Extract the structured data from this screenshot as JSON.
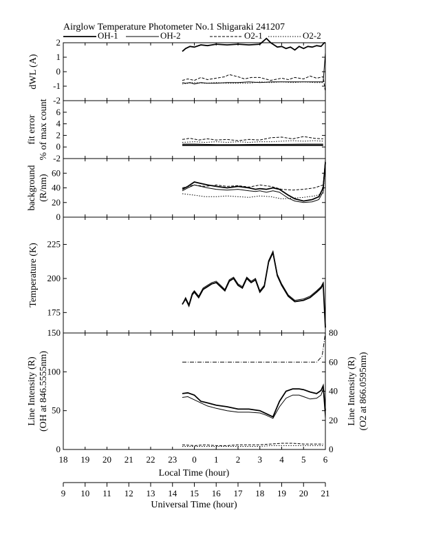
{
  "title": "Airglow Temperature Photometer No.1   Shigaraki   241207",
  "legend": [
    {
      "label": "OH-1",
      "style": "solid",
      "width": 1.8
    },
    {
      "label": "OH-2",
      "style": "solid",
      "width": 1.0
    },
    {
      "label": "O2-1",
      "style": "dash",
      "width": 1.0
    },
    {
      "label": "O2-2",
      "style": "dot",
      "width": 1.0
    }
  ],
  "x_axis": {
    "label": "Local Time (hour)",
    "ticks": [
      "18",
      "19",
      "20",
      "21",
      "22",
      "23",
      "0",
      "1",
      "2",
      "3",
      "4",
      "5",
      "6"
    ]
  },
  "x2_axis": {
    "label": "Universal Time (hour)",
    "ticks": [
      "9",
      "10",
      "11",
      "12",
      "13",
      "14",
      "15",
      "16",
      "17",
      "18",
      "19",
      "20",
      "21"
    ]
  },
  "chart_data": [
    {
      "type": "line",
      "ylabel": "dWL (A)",
      "ylim": [
        -2,
        2
      ],
      "yticks": [
        "2",
        "1",
        "0",
        "-1",
        "-2"
      ],
      "series": [
        {
          "name": "OH-1",
          "x": [
            23.45,
            23.6,
            23.8,
            24.0,
            24.3,
            24.6,
            25.0,
            25.5,
            26.0,
            26.5,
            27.0,
            27.3,
            27.5,
            27.8,
            28.0,
            28.2,
            28.4,
            28.6,
            28.8,
            29.0,
            29.2,
            29.4,
            29.6,
            29.8,
            29.95,
            30.0
          ],
          "y": [
            1.4,
            1.6,
            1.75,
            1.7,
            1.85,
            1.8,
            1.9,
            1.85,
            1.9,
            1.85,
            1.9,
            2.3,
            2.0,
            1.7,
            1.75,
            1.6,
            1.7,
            1.5,
            1.75,
            1.6,
            1.75,
            1.7,
            1.8,
            1.75,
            2.0,
            2.0
          ]
        },
        {
          "name": "OH-2",
          "x": [
            23.45,
            23.6,
            23.8,
            24.0,
            24.3,
            24.6,
            25.0,
            25.5,
            26.0,
            26.5,
            27.0,
            27.5,
            28.0,
            28.5,
            29.0,
            29.5,
            29.9,
            30.0
          ],
          "y": [
            -0.75,
            -0.8,
            -0.75,
            -0.85,
            -0.75,
            -0.8,
            -0.8,
            -0.75,
            -0.75,
            -0.7,
            -0.75,
            -0.7,
            -0.7,
            -0.7,
            -0.7,
            -0.7,
            -0.7,
            1.3
          ]
        },
        {
          "name": "O2-1",
          "x": [
            23.45,
            23.7,
            24.0,
            24.3,
            24.6,
            25.0,
            25.4,
            25.6,
            26.0,
            26.3,
            26.6,
            27.0,
            27.5,
            28.0,
            28.3,
            28.6,
            29.0,
            29.3,
            29.6,
            29.9,
            30.0
          ],
          "y": [
            -0.6,
            -0.5,
            -0.6,
            -0.4,
            -0.55,
            -0.45,
            -0.35,
            -0.2,
            -0.35,
            -0.5,
            -0.4,
            -0.4,
            -0.6,
            -0.45,
            -0.55,
            -0.4,
            -0.5,
            -0.3,
            -0.45,
            -0.35,
            -1.4
          ]
        },
        {
          "name": "O2-2",
          "x": [
            23.45,
            23.7,
            24.0,
            24.5,
            25.0,
            25.5,
            26.0,
            26.5,
            27.0,
            27.5,
            28.0,
            28.5,
            29.0,
            29.5,
            29.9
          ],
          "y": [
            -0.85,
            -0.8,
            -0.75,
            -0.8,
            -0.75,
            -0.8,
            -0.8,
            -0.8,
            -0.7,
            -0.75,
            -0.7,
            -0.75,
            -0.7,
            -0.75,
            -0.75
          ]
        }
      ]
    },
    {
      "type": "line",
      "ylabel": "fit error",
      "ylabel2": "% of max count",
      "ylim": [
        -2,
        8
      ],
      "yticks": [
        "6",
        "4",
        "2",
        "0",
        "-2"
      ],
      "series": [
        {
          "name": "OH-1",
          "x": [
            23.45,
            24.0,
            25.0,
            26.0,
            27.0,
            28.0,
            28.5,
            29.0,
            29.5,
            29.9
          ],
          "y": [
            0.3,
            0.3,
            0.3,
            0.3,
            0.3,
            0.3,
            0.3,
            0.3,
            0.3,
            0.3
          ]
        },
        {
          "name": "OH-2",
          "x": [
            23.45,
            24.0,
            25.0,
            26.0,
            27.0,
            28.0,
            29.0,
            29.9
          ],
          "y": [
            0.5,
            0.5,
            0.4,
            0.4,
            0.45,
            0.45,
            0.5,
            0.5
          ]
        },
        {
          "name": "O2-1",
          "x": [
            23.45,
            23.8,
            24.2,
            24.6,
            25.0,
            25.5,
            26.0,
            26.5,
            27.0,
            27.5,
            28.0,
            28.5,
            29.0,
            29.5,
            29.9
          ],
          "y": [
            1.3,
            1.5,
            1.2,
            1.4,
            1.2,
            1.3,
            1.1,
            1.3,
            1.2,
            1.6,
            1.7,
            1.4,
            1.8,
            1.5,
            1.4
          ]
        },
        {
          "name": "O2-2",
          "x": [
            23.45,
            24.0,
            24.5,
            25.0,
            25.5,
            26.0,
            26.5,
            27.0,
            27.5,
            28.0,
            28.5,
            29.0,
            29.5,
            29.9
          ],
          "y": [
            0.8,
            0.9,
            0.8,
            0.9,
            0.8,
            0.9,
            0.8,
            0.9,
            0.9,
            1.0,
            1.1,
            1.0,
            1.1,
            1.0
          ]
        }
      ]
    },
    {
      "type": "line",
      "ylabel": "background",
      "ylabel2": "(R/nm)",
      "ylim": [
        0,
        80
      ],
      "yticks": [
        "60",
        "40",
        "20",
        "0"
      ],
      "series": [
        {
          "name": "OH-1",
          "x": [
            23.45,
            23.7,
            24.0,
            24.3,
            24.6,
            25.0,
            25.5,
            26.0,
            26.5,
            26.8,
            27.0,
            27.3,
            27.6,
            27.9,
            28.0,
            28.3,
            28.6,
            29.0,
            29.4,
            29.7,
            29.9,
            30.0
          ],
          "y": [
            38,
            42,
            48,
            46,
            44,
            42,
            40,
            42,
            40,
            38,
            39,
            38,
            40,
            38,
            36,
            30,
            25,
            22,
            24,
            28,
            40,
            75
          ]
        },
        {
          "name": "OH-2",
          "x": [
            23.45,
            23.7,
            24.0,
            24.3,
            24.6,
            25.0,
            25.5,
            26.0,
            26.5,
            26.8,
            27.0,
            27.3,
            27.6,
            27.9,
            28.0,
            28.3,
            28.6,
            29.0,
            29.4,
            29.7,
            29.9,
            30.0
          ],
          "y": [
            36,
            40,
            44,
            42,
            40,
            38,
            37,
            38,
            36,
            35,
            36,
            34,
            36,
            34,
            32,
            26,
            22,
            20,
            21,
            24,
            35,
            75
          ]
        },
        {
          "name": "O2-1",
          "x": [
            23.45,
            24.0,
            24.5,
            25.0,
            25.5,
            26.0,
            26.5,
            27.0,
            27.5,
            28.0,
            28.5,
            29.0,
            29.5,
            29.9,
            30.0
          ],
          "y": [
            40,
            44,
            42,
            44,
            42,
            43,
            41,
            44,
            42,
            38,
            37,
            38,
            40,
            44,
            78
          ]
        },
        {
          "name": "O2-2",
          "x": [
            23.45,
            24.0,
            24.5,
            25.0,
            25.5,
            26.0,
            26.5,
            27.0,
            27.5,
            28.0,
            28.5,
            29.0,
            29.5,
            29.9,
            30.0
          ],
          "y": [
            32,
            30,
            28,
            28,
            29,
            28,
            27,
            29,
            28,
            25,
            26,
            27,
            29,
            32,
            72
          ]
        }
      ]
    },
    {
      "type": "line",
      "ylabel": "Temperature (K)",
      "ylim": [
        160,
        245
      ],
      "yticks": [
        "225",
        "200",
        "175"
      ],
      "series": [
        {
          "name": "OH-1",
          "x": [
            23.45,
            23.6,
            23.75,
            23.9,
            24.0,
            24.2,
            24.4,
            24.6,
            24.8,
            25.0,
            25.2,
            25.4,
            25.6,
            25.8,
            26.0,
            26.2,
            26.4,
            26.6,
            26.8,
            27.0,
            27.2,
            27.4,
            27.6,
            27.8,
            28.0,
            28.3,
            28.6,
            29.0,
            29.3,
            29.6,
            29.8,
            29.9,
            30.0
          ],
          "y": [
            181,
            185,
            180,
            188,
            190,
            186,
            192,
            194,
            196,
            197,
            194,
            191,
            198,
            200,
            195,
            193,
            200,
            197,
            199,
            190,
            194,
            212,
            219,
            202,
            195,
            187,
            183,
            184,
            186,
            190,
            193,
            196,
            164
          ]
        },
        {
          "name": "OH-2",
          "x": [
            23.45,
            23.6,
            23.75,
            23.9,
            24.0,
            24.2,
            24.4,
            24.6,
            24.8,
            25.0,
            25.2,
            25.4,
            25.6,
            25.8,
            26.0,
            26.2,
            26.4,
            26.6,
            26.8,
            27.0,
            27.2,
            27.4,
            27.6,
            27.8,
            28.0,
            28.3,
            28.6,
            29.0,
            29.3,
            29.6,
            29.8,
            29.9,
            30.0
          ],
          "y": [
            181,
            186,
            181,
            189,
            191,
            187,
            193,
            195,
            197,
            198,
            195,
            192,
            199,
            201,
            196,
            194,
            201,
            198,
            200,
            191,
            195,
            213,
            220,
            203,
            196,
            188,
            184,
            185,
            187,
            191,
            194,
            197,
            163
          ]
        }
      ]
    },
    {
      "type": "line",
      "ylabel": "Line Intensity (R)",
      "ylabel2": "(OH at 846.5555nm)",
      "ylim": [
        0,
        150
      ],
      "yticks": [
        "150",
        "100",
        "50",
        "0"
      ],
      "y2label": "Line Intensity (R)",
      "y2label2": "(O2 at 866.0595nm)",
      "y2lim": [
        0,
        80
      ],
      "y2ticks": [
        "80",
        "60",
        "40",
        "20",
        "0"
      ],
      "series": [
        {
          "name": "OH-1",
          "x": [
            23.45,
            23.7,
            24.0,
            24.3,
            24.6,
            25.0,
            25.5,
            26.0,
            26.5,
            27.0,
            27.3,
            27.6,
            27.9,
            28.2,
            28.5,
            28.8,
            29.0,
            29.3,
            29.6,
            29.8,
            29.9,
            30.0
          ],
          "y": [
            72,
            73,
            70,
            62,
            60,
            57,
            55,
            52,
            52,
            50,
            46,
            42,
            62,
            75,
            78,
            78,
            77,
            74,
            72,
            76,
            82,
            50
          ]
        },
        {
          "name": "OH-2",
          "x": [
            23.45,
            23.7,
            24.0,
            24.3,
            24.6,
            25.0,
            25.5,
            26.0,
            26.5,
            27.0,
            27.3,
            27.6,
            27.9,
            28.2,
            28.5,
            28.8,
            29.0,
            29.3,
            29.6,
            29.8,
            29.9,
            30.0
          ],
          "y": [
            67,
            68,
            64,
            60,
            56,
            53,
            50,
            48,
            48,
            47,
            44,
            40,
            55,
            66,
            70,
            70,
            68,
            65,
            66,
            70,
            78,
            40
          ]
        },
        {
          "name": "O2-1",
          "x": [
            23.45,
            24.0,
            24.5,
            25.0,
            25.5,
            26.0,
            26.5,
            27.0,
            27.5,
            28.0,
            28.5,
            29.0,
            29.5,
            29.9
          ],
          "y": [
            6,
            5,
            6,
            5,
            5,
            6,
            6,
            6,
            7,
            8,
            8,
            7,
            7,
            7
          ]
        },
        {
          "name": "O2-2",
          "x": [
            23.45,
            24.0,
            24.5,
            25.0,
            25.5,
            26.0,
            26.5,
            27.0,
            27.5,
            28.0,
            28.5,
            29.0,
            29.5,
            29.9
          ],
          "y": [
            4,
            4,
            4,
            4,
            4,
            4,
            4,
            4,
            5,
            5,
            5,
            5,
            5,
            5
          ]
        },
        {
          "name": "",
          "axis": "right",
          "x": [
            23.45,
            24.0,
            25.0,
            26.0,
            27.0,
            28.0,
            29.0,
            29.6,
            29.85,
            30.0
          ],
          "y": [
            60,
            60,
            60,
            60,
            60,
            60,
            60,
            60,
            64,
            80
          ]
        }
      ]
    }
  ]
}
